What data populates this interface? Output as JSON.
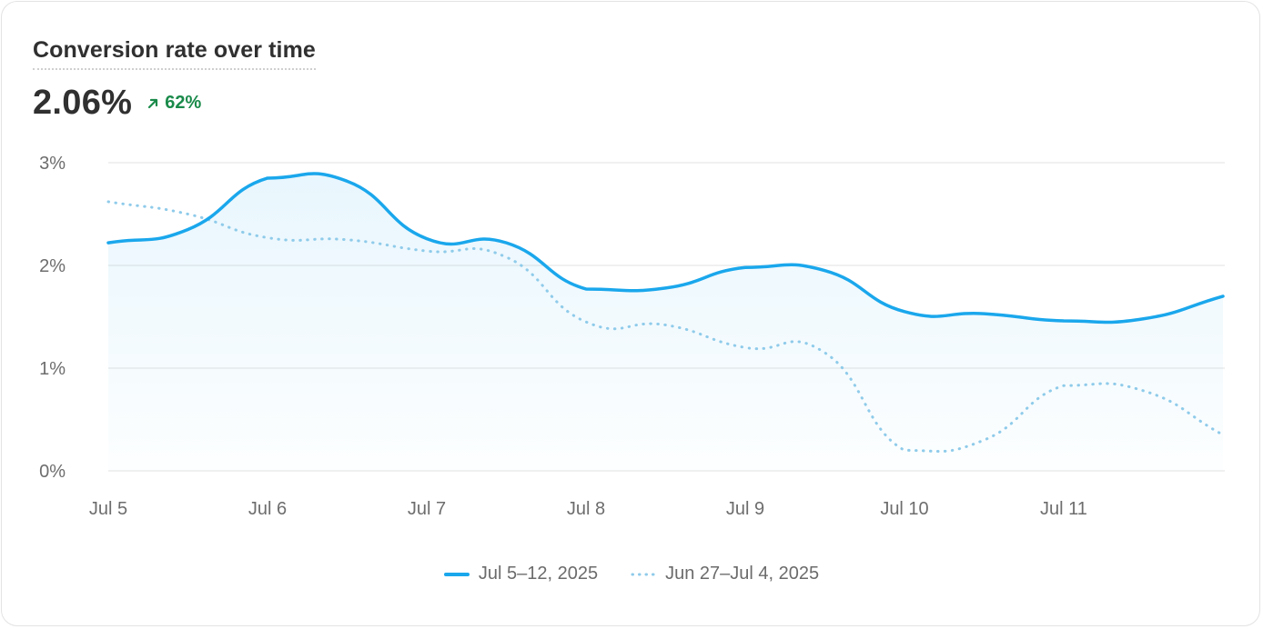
{
  "card": {
    "title": "Conversion rate over time",
    "metric": "2.06%",
    "delta": "62%",
    "delta_direction": "up",
    "delta_icon": "arrow-up-right-icon",
    "colors": {
      "current": "#1aa7ec",
      "previous": "#8fcbea",
      "positive": "#1a8a4a"
    }
  },
  "chart_data": {
    "type": "line",
    "title": "Conversion rate over time",
    "xlabel": "",
    "ylabel": "",
    "x_tick_labels": [
      "Jul 5",
      "Jul 6",
      "Jul 7",
      "Jul 8",
      "Jul 9",
      "Jul 10",
      "Jul 11"
    ],
    "y_tick_labels": [
      "0%",
      "1%",
      "2%",
      "3%"
    ],
    "ylim": [
      0,
      3
    ],
    "grid": true,
    "legend": "bottom-center",
    "series": [
      {
        "name": "Jul 5–12, 2025",
        "style": "solid",
        "area_fill": true,
        "x": [
          0,
          0.5,
          1,
          1.5,
          2,
          2.5,
          3,
          3.5,
          4,
          4.5,
          5,
          5.5,
          6,
          6.5,
          7
        ],
        "values": [
          2.22,
          2.35,
          2.85,
          2.82,
          2.26,
          2.22,
          1.77,
          1.78,
          1.98,
          1.95,
          1.55,
          1.53,
          1.46,
          1.48,
          1.7
        ]
      },
      {
        "name": "Jun 27–Jul 4, 2025",
        "style": "dotted",
        "area_fill": false,
        "x": [
          0,
          0.5,
          1,
          1.5,
          2,
          2.5,
          3,
          3.5,
          4,
          4.5,
          5,
          5.5,
          6,
          6.5,
          7
        ],
        "values": [
          2.62,
          2.5,
          2.27,
          2.25,
          2.14,
          2.08,
          1.45,
          1.42,
          1.2,
          1.15,
          0.2,
          0.3,
          0.83,
          0.78,
          0.35
        ]
      }
    ]
  }
}
